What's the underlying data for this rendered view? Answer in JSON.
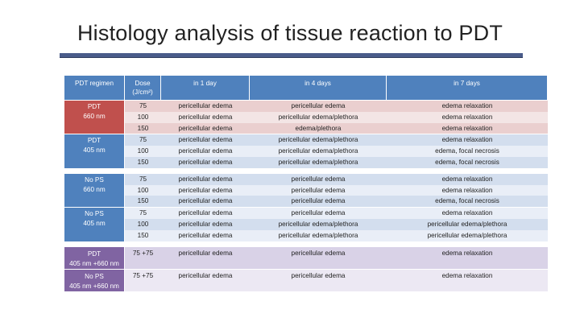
{
  "title": "Histology analysis of tissue reaction to PDT",
  "table": {
    "headers": {
      "regimen": "PDT regimen",
      "dose_line1": "Dose",
      "dose_line2": "(J/cm²)",
      "day1": "in 1 day",
      "day4": "in 4 days",
      "day7": "in 7 days"
    },
    "groups": [
      {
        "label1": "PDT",
        "label2": "660 nm",
        "rows": [
          {
            "dose": "75",
            "d1": "pericellular edema",
            "d4": "pericellular edema",
            "d7": "edema relaxation"
          },
          {
            "dose": "100",
            "d1": "pericellular edema",
            "d4": "pericellular edema/plethora",
            "d7": "edema relaxation"
          },
          {
            "dose": "150",
            "d1": "pericellular edema",
            "d4": "edema/plethora",
            "d7": "edema relaxation"
          }
        ]
      },
      {
        "label1": "PDT",
        "label2": "405 nm",
        "rows": [
          {
            "dose": "75",
            "d1": "pericellular edema",
            "d4": "pericellular edema/plethora",
            "d7": "edema relaxation"
          },
          {
            "dose": "100",
            "d1": "pericellular edema",
            "d4": "pericellular edema/plethora",
            "d7": "edema, focal necrosis"
          },
          {
            "dose": "150",
            "d1": "pericellular edema",
            "d4": "pericellular edema/plethora",
            "d7": "edema, focal necrosis"
          }
        ]
      },
      {
        "label1": "No PS",
        "label2": "660 nm",
        "rows": [
          {
            "dose": "75",
            "d1": "pericellular edema",
            "d4": "pericellular edema",
            "d7": "edema relaxation"
          },
          {
            "dose": "100",
            "d1": "pericellular edema",
            "d4": "pericellular edema",
            "d7": "edema relaxation"
          },
          {
            "dose": "150",
            "d1": "pericellular edema",
            "d4": "pericellular edema",
            "d7": "edema, focal necrosis"
          }
        ]
      },
      {
        "label1": "No PS",
        "label2": "405 nm",
        "rows": [
          {
            "dose": "75",
            "d1": "pericellular edema",
            "d4": "pericellular edema",
            "d7": "edema relaxation"
          },
          {
            "dose": "100",
            "d1": "pericellular edema",
            "d4": "pericellular edema/plethora",
            "d7": "pericellular edema/plethora"
          },
          {
            "dose": "150",
            "d1": "pericellular edema",
            "d4": "pericellular edema/plethora",
            "d7": "pericellular edema/plethora"
          }
        ]
      },
      {
        "label1": "PDT",
        "label2": "405 nm +660 nm",
        "rows": [
          {
            "dose": "75 +75",
            "d1": "pericellular edema",
            "d4": "pericellular edema",
            "d7": "edema relaxation"
          }
        ]
      },
      {
        "label1": "No PS",
        "label2": "405 nm +660 nm",
        "rows": [
          {
            "dose": "75 +75",
            "d1": "pericellular edema",
            "d4": "pericellular edema",
            "d7": "edema relaxation"
          }
        ]
      }
    ]
  }
}
